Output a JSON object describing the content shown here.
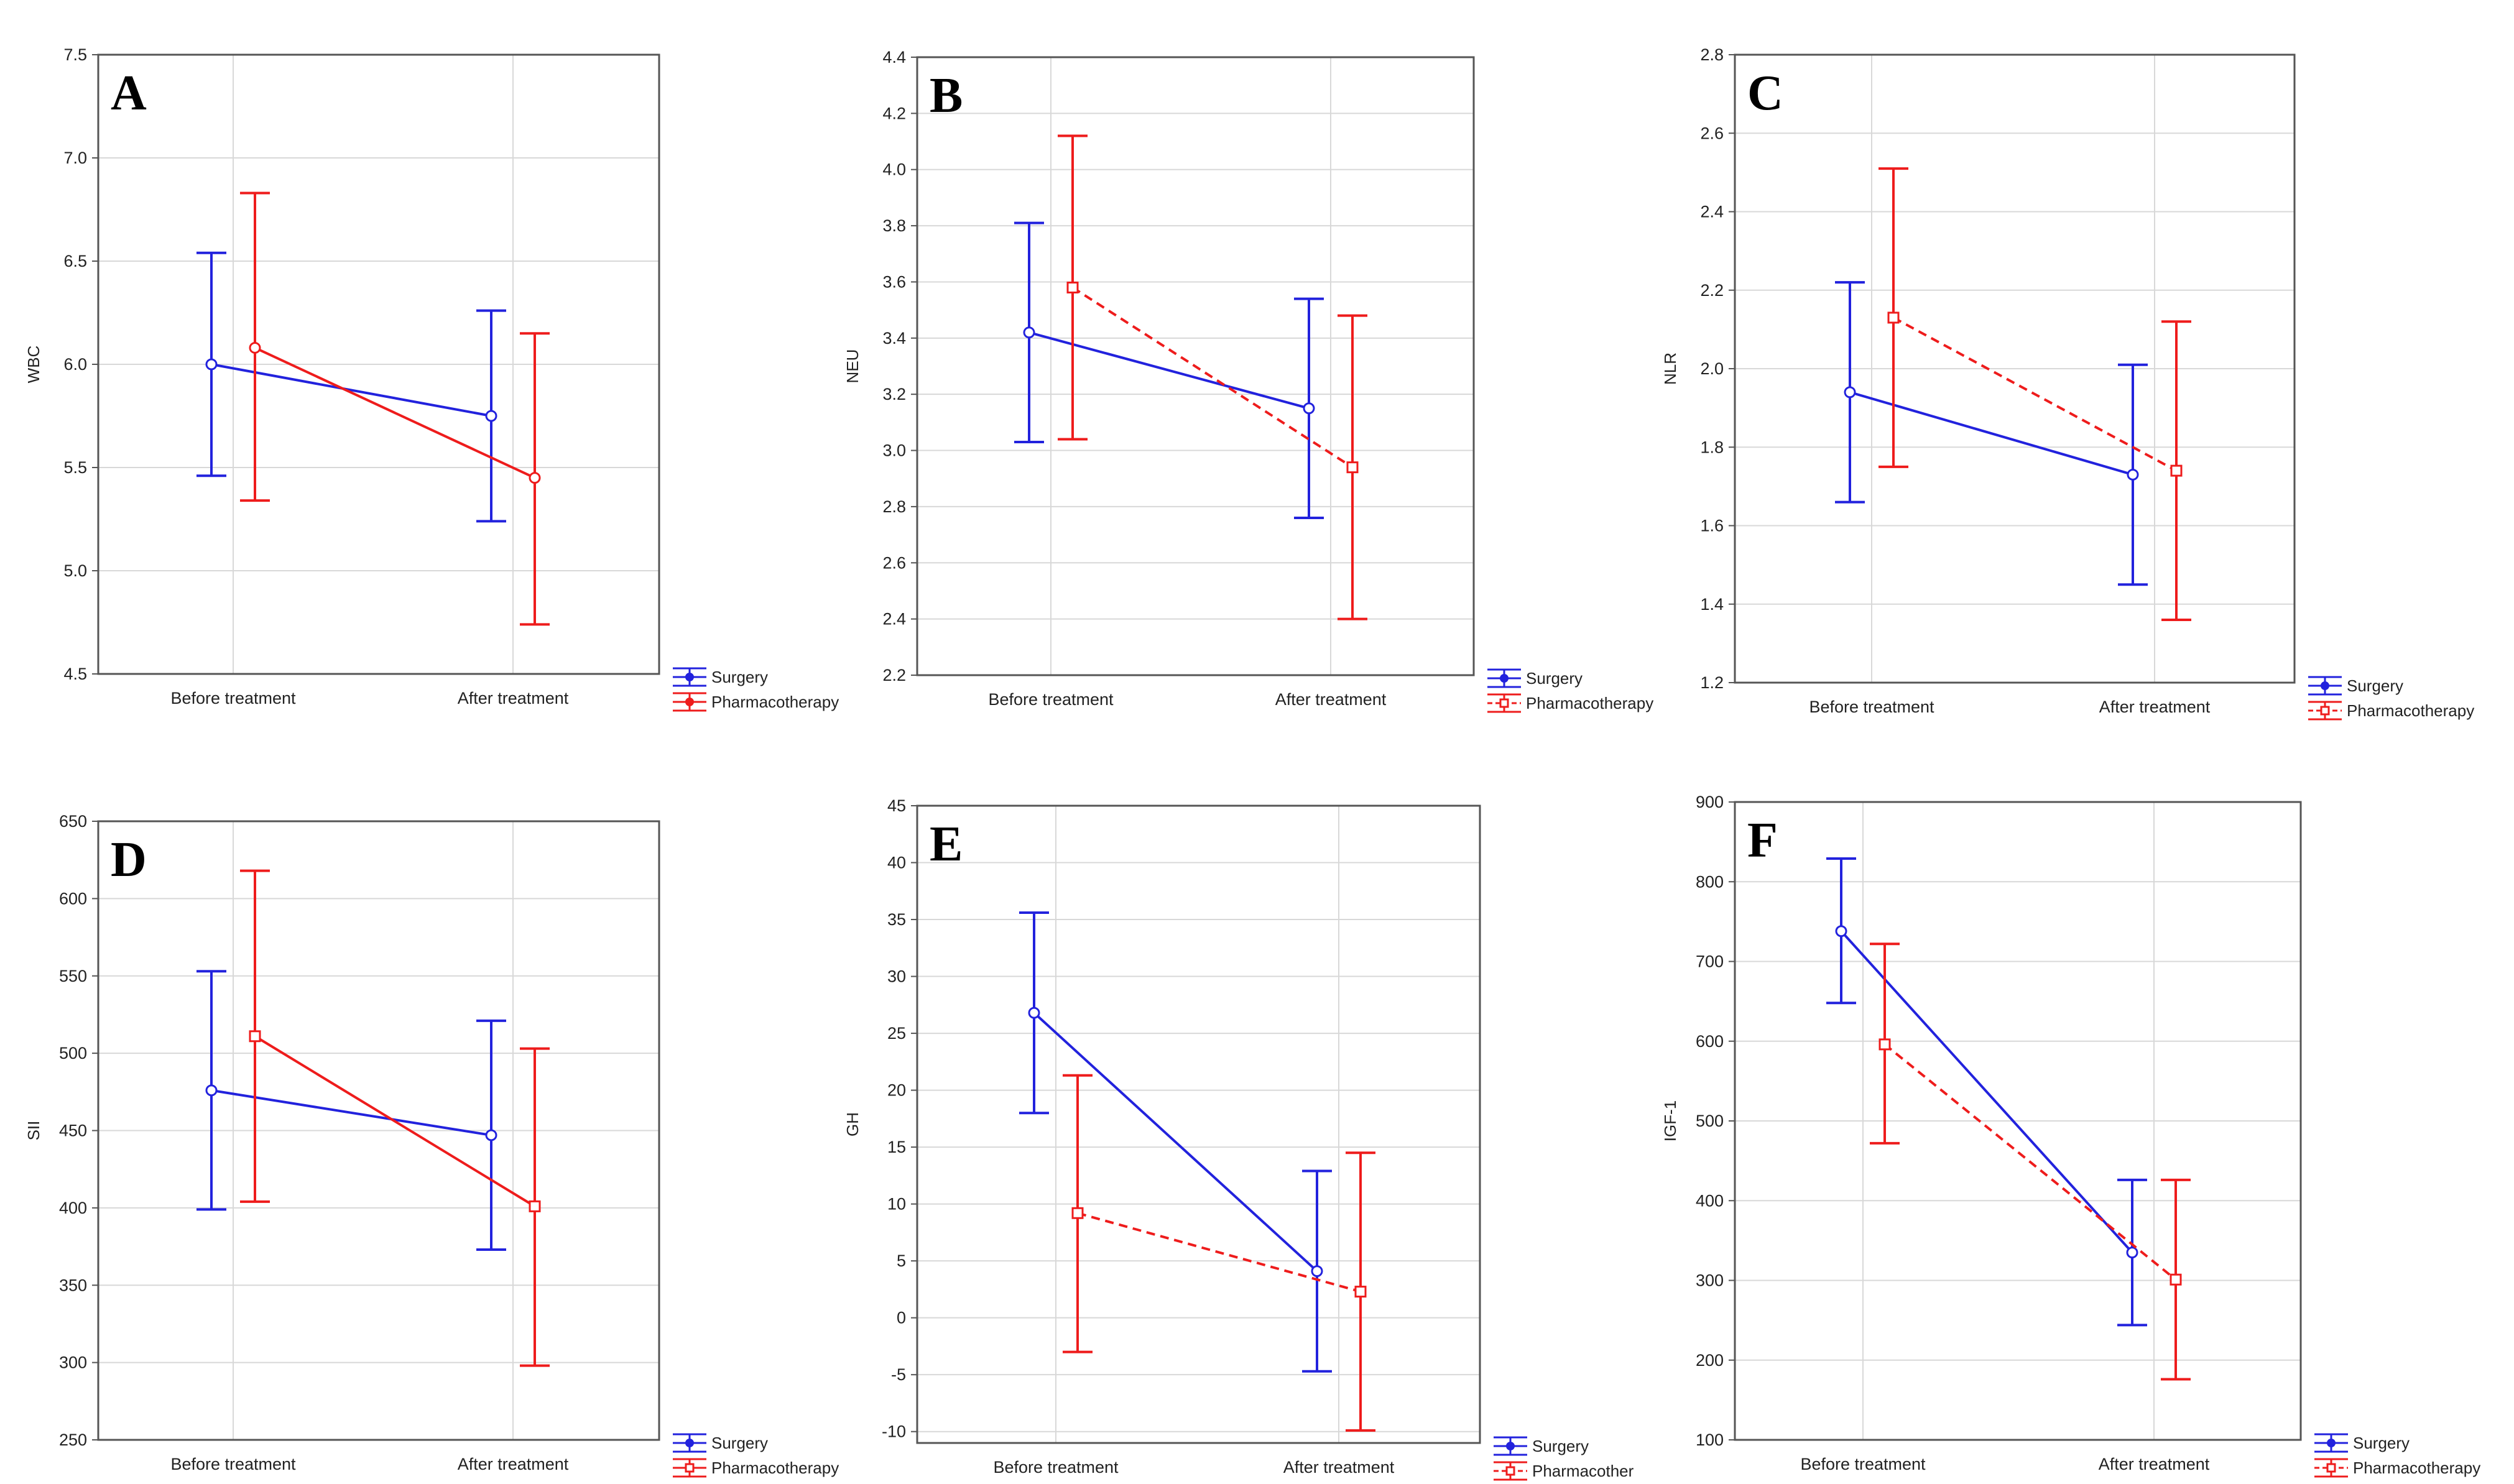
{
  "figure": {
    "colors": {
      "surgery": "#2222dd",
      "pharmacotherapy": "#ee1c1c",
      "grid": "#d8d8d8",
      "frame": "#555555"
    },
    "categories": [
      "Before treatment",
      "After treatment"
    ],
    "legend": [
      "Surgery",
      "Pharmacotherapy"
    ]
  },
  "chart_data": [
    {
      "panel": "A",
      "type": "line",
      "ylabel": "WBC",
      "categories": [
        "Before treatment",
        "After treatment"
      ],
      "ylim": [
        4.5,
        7.5
      ],
      "yticks": [
        4.5,
        5.0,
        5.5,
        6.0,
        6.5,
        7.0,
        7.5
      ],
      "decimals": 1,
      "legend": [
        "Surgery",
        "Pharmacotherapy"
      ],
      "series": [
        {
          "name": "Surgery",
          "values": [
            6.0,
            5.75
          ],
          "lower": [
            5.46,
            5.24
          ],
          "upper": [
            6.54,
            6.26
          ],
          "dashed": false,
          "marker": "circle"
        },
        {
          "name": "Pharmacotherapy",
          "values": [
            6.08,
            5.45
          ],
          "lower": [
            5.34,
            4.74
          ],
          "upper": [
            6.83,
            6.15
          ],
          "dashed": false,
          "marker": "circle"
        }
      ]
    },
    {
      "panel": "B",
      "type": "line",
      "ylabel": "NEU",
      "categories": [
        "Before treatment",
        "After treatment"
      ],
      "ylim": [
        2.2,
        4.4
      ],
      "yticks": [
        2.2,
        2.4,
        2.6,
        2.8,
        3.0,
        3.2,
        3.4,
        3.6,
        3.8,
        4.0,
        4.2,
        4.4
      ],
      "decimals": 1,
      "legend": [
        "Surgery",
        "Pharmacotherapy"
      ],
      "series": [
        {
          "name": "Surgery",
          "values": [
            3.42,
            3.15
          ],
          "lower": [
            3.03,
            2.76
          ],
          "upper": [
            3.81,
            3.54
          ],
          "dashed": false,
          "marker": "circle"
        },
        {
          "name": "Pharmacotherapy",
          "values": [
            3.58,
            2.94
          ],
          "lower": [
            3.04,
            2.4
          ],
          "upper": [
            4.12,
            3.48
          ],
          "dashed": true,
          "marker": "square"
        }
      ]
    },
    {
      "panel": "C",
      "type": "line",
      "ylabel": "NLR",
      "categories": [
        "Before treatment",
        "After treatment"
      ],
      "ylim": [
        1.2,
        2.8
      ],
      "yticks": [
        1.2,
        1.4,
        1.6,
        1.8,
        2.0,
        2.2,
        2.4,
        2.6,
        2.8
      ],
      "decimals": 1,
      "legend": [
        "Surgery",
        "Pharmacotherapy"
      ],
      "series": [
        {
          "name": "Surgery",
          "values": [
            1.94,
            1.73
          ],
          "lower": [
            1.66,
            1.45
          ],
          "upper": [
            2.22,
            2.01
          ],
          "dashed": false,
          "marker": "circle"
        },
        {
          "name": "Pharmacotherapy",
          "values": [
            2.13,
            1.74
          ],
          "lower": [
            1.75,
            1.36
          ],
          "upper": [
            2.51,
            2.12
          ],
          "dashed": true,
          "marker": "square"
        }
      ]
    },
    {
      "panel": "D",
      "type": "line",
      "ylabel": "SII",
      "categories": [
        "Before treatment",
        "After treatment"
      ],
      "ylim": [
        250,
        650
      ],
      "yticks": [
        250,
        300,
        350,
        400,
        450,
        500,
        550,
        600,
        650
      ],
      "decimals": 0,
      "legend": [
        "Surgery",
        "Pharmacotheraрy"
      ],
      "series": [
        {
          "name": "Surgery",
          "values": [
            476,
            447
          ],
          "lower": [
            399,
            373
          ],
          "upper": [
            553,
            521
          ],
          "dashed": false,
          "marker": "circle"
        },
        {
          "name": "Pharmacotherapy",
          "values": [
            511,
            401
          ],
          "lower": [
            404,
            298
          ],
          "upper": [
            618,
            503
          ],
          "dashed": false,
          "marker": "square"
        }
      ]
    },
    {
      "panel": "E",
      "type": "line",
      "ylabel": "GH",
      "categories": [
        "Before treatment",
        "After treatment"
      ],
      "ylim": [
        -11,
        45
      ],
      "yticks": [
        -10,
        -5,
        0,
        5,
        10,
        15,
        20,
        25,
        30,
        35,
        40,
        45
      ],
      "decimals": 0,
      "legend": [
        "Surgery",
        "Pharmacother"
      ],
      "series": [
        {
          "name": "Surgery",
          "values": [
            26.8,
            4.1
          ],
          "lower": [
            18.0,
            -4.7
          ],
          "upper": [
            35.6,
            12.9
          ],
          "dashed": false,
          "marker": "circle"
        },
        {
          "name": "Pharmacotherapy",
          "values": [
            9.2,
            2.3
          ],
          "lower": [
            -3.0,
            -9.9
          ],
          "upper": [
            21.3,
            14.5
          ],
          "dashed": true,
          "marker": "square"
        }
      ]
    },
    {
      "panel": "F",
      "type": "line",
      "ylabel": "IGF-1",
      "categories": [
        "Before treatment",
        "After treatment"
      ],
      "ylim": [
        100,
        900
      ],
      "yticks": [
        100,
        200,
        300,
        400,
        500,
        600,
        700,
        800,
        900
      ],
      "decimals": 0,
      "legend": [
        "Surgery",
        "Pharmacotherapy"
      ],
      "series": [
        {
          "name": "Surgery",
          "values": [
            738,
            335
          ],
          "lower": [
            648,
            244
          ],
          "upper": [
            829,
            426
          ],
          "dashed": false,
          "marker": "circle"
        },
        {
          "name": "Pharmacotherapy",
          "values": [
            596,
            301
          ],
          "lower": [
            472,
            176
          ],
          "upper": [
            722,
            426
          ],
          "dashed": true,
          "marker": "square"
        }
      ]
    }
  ]
}
